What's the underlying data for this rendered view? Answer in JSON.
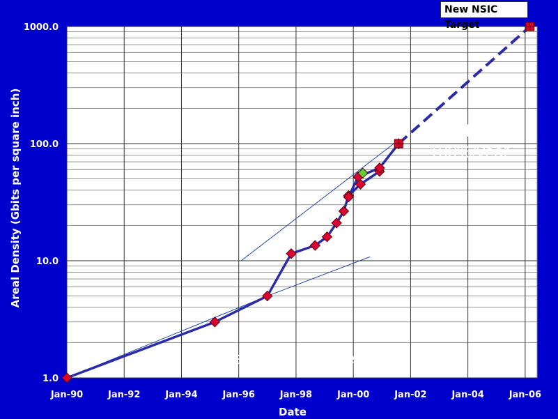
{
  "chart_data": {
    "type": "line",
    "title": "",
    "xlabel": "Date",
    "ylabel": "Areal Density (Gbits per square inch)",
    "y_scale": "log",
    "ylim": [
      1,
      1000
    ],
    "xlim": [
      "1990-01-01",
      "2006-06-01"
    ],
    "grid": true,
    "x_ticks": [
      "Jan-90",
      "Jan-92",
      "Jan-94",
      "Jan-96",
      "Jan-98",
      "Jan-00",
      "Jan-02",
      "Jan-04",
      "Jan-06"
    ],
    "y_ticks": [
      "1.0",
      "10.0",
      "100.0",
      "1000.0"
    ],
    "series": [
      {
        "color": "#2b2baa",
        "marker": "diamond",
        "marker_color": "#dd0033",
        "x": [
          "1990-01-01",
          "1995-03-01",
          "1997-01-01",
          "1997-11-01",
          "1998-09-01",
          "1999-02-01",
          "1999-06-01",
          "1999-09-01",
          "1999-11-01",
          "2000-04-01",
          "2000-12-01"
        ],
        "y": [
          1.0,
          3.0,
          5.0,
          11.5,
          13.5,
          16.0,
          21.0,
          26.5,
          36.0,
          45.0,
          58.0
        ]
      },
      {
        "color": "#2b2baa",
        "marker": "diamond",
        "marker_color": "#dd0033",
        "x": [
          "1999-11-01",
          "2000-03-01",
          "2000-12-01",
          "2001-08-01"
        ],
        "y": [
          35.0,
          52.0,
          62.0,
          100.0
        ]
      },
      {
        "color": "#2b2baa",
        "marker": "diamond",
        "marker_color": "#66cc33",
        "x": [
          "2000-05-01"
        ],
        "y": [
          56.0
        ]
      },
      {
        "color": "#2b2baa",
        "dashed": true,
        "marker": "square",
        "marker_color": "#dd0033",
        "x": [
          "2001-08-01",
          "2006-03-01"
        ],
        "y": [
          100.0,
          1000.0
        ]
      }
    ],
    "trend_lines": [
      {
        "x": [
          "1990-01-01",
          "1997-01-01"
        ],
        "y": [
          1.0,
          5.0
        ]
      },
      {
        "x": [
          "1996-02-01",
          "2001-06-01"
        ],
        "y": [
          10.0,
          100.0
        ]
      },
      {
        "x": [
          "1997-01-01",
          "2000-08-01"
        ],
        "y": [
          5.0,
          10.8
        ]
      }
    ],
    "annotations": [
      "100x/decade",
      "=100%/year",
      "~10x/decade = 60%/year"
    ],
    "legend": {
      "label": "New NSIC Target",
      "position": "top-right"
    }
  }
}
